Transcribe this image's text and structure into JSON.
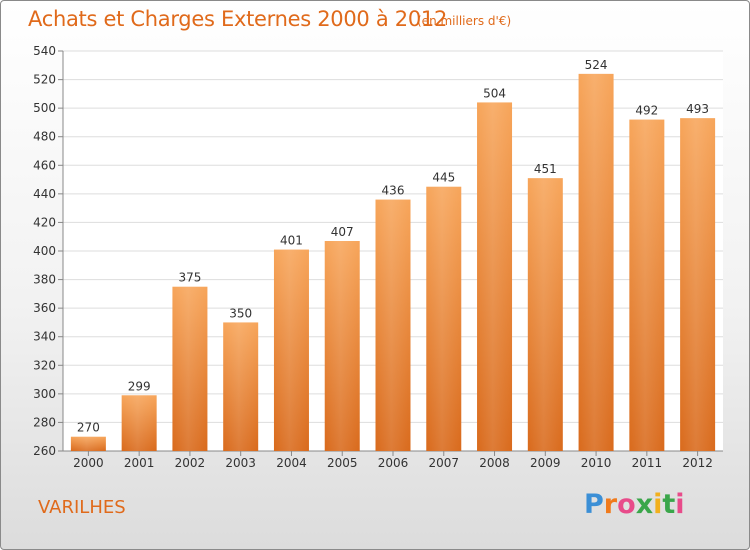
{
  "header": {
    "title": "Achats et Charges Externes 2000 à 2012",
    "subtitle": "(en milliers d'€)"
  },
  "footer": {
    "location": "VARILHES",
    "logo_text": "Proxiti"
  },
  "colors": {
    "title": "#e06a1b",
    "bar_top": "#f7a55a",
    "bar_bottom": "#d96a1c",
    "grid": "#dddddd"
  },
  "chart_data": {
    "type": "bar",
    "title": "Achats et Charges Externes 2000 à 2012",
    "subtitle": "(en milliers d'€)",
    "xlabel": "",
    "ylabel": "",
    "categories": [
      "2000",
      "2001",
      "2002",
      "2003",
      "2004",
      "2005",
      "2006",
      "2007",
      "2008",
      "2009",
      "2010",
      "2011",
      "2012"
    ],
    "values": [
      270,
      299,
      375,
      350,
      401,
      407,
      436,
      445,
      504,
      451,
      524,
      492,
      493
    ],
    "ylim": [
      260,
      540
    ],
    "yticks": [
      260,
      280,
      300,
      320,
      340,
      360,
      380,
      400,
      420,
      440,
      460,
      480,
      500,
      520,
      540
    ],
    "grid": true,
    "legend": "none"
  }
}
